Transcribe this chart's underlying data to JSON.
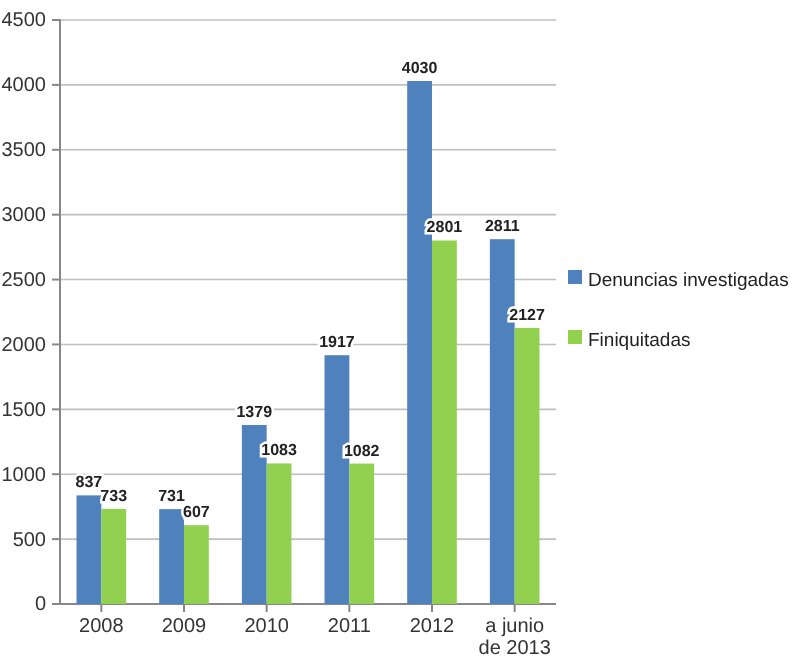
{
  "chart_data": {
    "type": "bar",
    "categories": [
      "2008",
      "2009",
      "2010",
      "2011",
      "2012",
      "a junio de 2013"
    ],
    "series": [
      {
        "name": "Denuncias investigadas",
        "color": "#4f81bd",
        "values": [
          837,
          731,
          1379,
          1917,
          4030,
          2811
        ]
      },
      {
        "name": "Finiquitadas",
        "color": "#92d050",
        "values": [
          733,
          607,
          1083,
          1082,
          2801,
          2127
        ]
      }
    ],
    "ylim": [
      0,
      4500
    ],
    "yticks": [
      0,
      500,
      1000,
      1500,
      2000,
      2500,
      3000,
      3500,
      4000,
      4500
    ],
    "grid": "y",
    "legend": "right",
    "data_labels": true
  }
}
